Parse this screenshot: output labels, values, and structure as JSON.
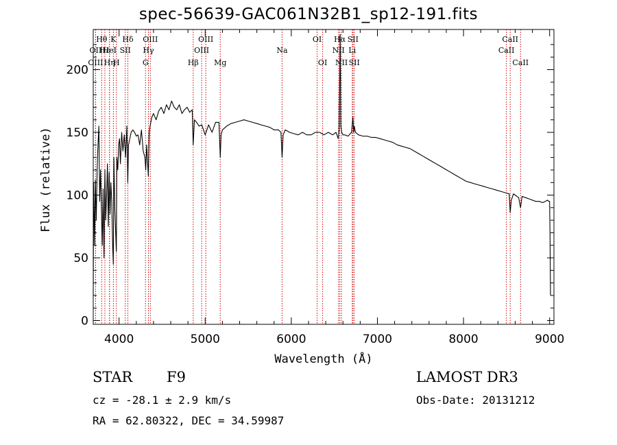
{
  "chart_data": {
    "type": "line",
    "title": "spec-56639-GAC061N32B1_sp12-191.fits",
    "xlabel": "Wavelength (Å)",
    "ylabel": "Flux (relative)",
    "xlim": [
      3700,
      9050
    ],
    "ylim": [
      -3,
      232
    ],
    "xticks": [
      4000,
      5000,
      6000,
      7000,
      8000,
      9000
    ],
    "yticks": [
      0,
      50,
      100,
      150,
      200
    ],
    "line_color": "#000000",
    "marker_color": "#cc0000",
    "series": [
      {
        "name": "spectrum",
        "x": [
          3700,
          3705,
          3715,
          3725,
          3735,
          3745,
          3755,
          3765,
          3775,
          3785,
          3795,
          3805,
          3815,
          3825,
          3835,
          3845,
          3855,
          3865,
          3875,
          3885,
          3895,
          3905,
          3915,
          3925,
          3933,
          3940,
          3950,
          3960,
          3968,
          3975,
          3985,
          3995,
          4005,
          4015,
          4030,
          4045,
          4060,
          4075,
          4090,
          4101,
          4110,
          4125,
          4140,
          4160,
          4180,
          4200,
          4220,
          4240,
          4260,
          4280,
          4300,
          4310,
          4320,
          4330,
          4340,
          4350,
          4360,
          4380,
          4400,
          4430,
          4460,
          4490,
          4520,
          4550,
          4580,
          4610,
          4640,
          4670,
          4700,
          4730,
          4760,
          4790,
          4820,
          4850,
          4861,
          4875,
          4900,
          4930,
          4960,
          5000,
          5040,
          5080,
          5120,
          5160,
          5175,
          5185,
          5200,
          5250,
          5300,
          5350,
          5400,
          5450,
          5500,
          5550,
          5600,
          5650,
          5700,
          5750,
          5800,
          5850,
          5880,
          5893,
          5905,
          5930,
          5980,
          6030,
          6080,
          6130,
          6180,
          6230,
          6280,
          6330,
          6380,
          6430,
          6480,
          6520,
          6545,
          6555,
          6563,
          6568,
          6575,
          6585,
          6600,
          6620,
          6660,
          6700,
          6716,
          6724,
          6731,
          6745,
          6780,
          6830,
          6880,
          6930,
          6980,
          7030,
          7080,
          7130,
          7180,
          7230,
          7280,
          7330,
          7380,
          7430,
          7480,
          7530,
          7580,
          7630,
          7680,
          7730,
          7780,
          7830,
          7880,
          7930,
          7980,
          8030,
          8080,
          8130,
          8180,
          8230,
          8280,
          8330,
          8380,
          8430,
          8480,
          8530,
          8542,
          8555,
          8580,
          8600,
          8620,
          8640,
          8662,
          8680,
          8720,
          8760,
          8800,
          8840,
          8880,
          8920,
          8950,
          8975,
          8990,
          9000,
          9005,
          9010
        ],
        "y": [
          20,
          110,
          60,
          112,
          80,
          120,
          140,
          155,
          95,
          120,
          90,
          60,
          105,
          50,
          120,
          80,
          100,
          125,
          75,
          118,
          85,
          110,
          95,
          60,
          45,
          130,
          90,
          70,
          55,
          130,
          120,
          140,
          145,
          125,
          150,
          135,
          148,
          130,
          155,
          110,
          140,
          145,
          150,
          152,
          150,
          147,
          148,
          140,
          152,
          135,
          130,
          120,
          140,
          128,
          115,
          150,
          155,
          162,
          165,
          160,
          167,
          170,
          165,
          172,
          168,
          175,
          170,
          168,
          172,
          165,
          168,
          170,
          166,
          168,
          140,
          160,
          158,
          155,
          156,
          148,
          156,
          150,
          158,
          158,
          130,
          148,
          152,
          155,
          157,
          158,
          159,
          160,
          159,
          158,
          157,
          156,
          155,
          154,
          152,
          152,
          150,
          130,
          148,
          152,
          150,
          149,
          148,
          150,
          148,
          148,
          150,
          150,
          148,
          150,
          148,
          150,
          145,
          152,
          195,
          228,
          155,
          150,
          148,
          148,
          147,
          150,
          162,
          150,
          155,
          150,
          148,
          147,
          147,
          146,
          146,
          145,
          144,
          143,
          142,
          140,
          139,
          138,
          137,
          135,
          133,
          131,
          129,
          127,
          125,
          123,
          121,
          119,
          117,
          115,
          113,
          111,
          110,
          109,
          108,
          107,
          106,
          105,
          104,
          103,
          102,
          101,
          86,
          96,
          101,
          100,
          99,
          98,
          90,
          99,
          98,
          97,
          96,
          95,
          95,
          94,
          95,
          96,
          95,
          95,
          68,
          20
        ]
      }
    ],
    "line_markers": [
      {
        "label": "Hθ",
        "x": 3798,
        "row": 1
      },
      {
        "label": "OII",
        "x": 3727,
        "row": 2
      },
      {
        "label": "OIII",
        "x": 3727,
        "row": 3
      },
      {
        "label": "Hε",
        "x": 3835,
        "row": 2
      },
      {
        "label": "Hη",
        "x": 3889,
        "row": 3
      },
      {
        "label": "K",
        "x": 3934,
        "row": 1
      },
      {
        "label": "HeI",
        "x": 3889,
        "row": 2
      },
      {
        "label": "H",
        "x": 3969,
        "row": 3
      },
      {
        "label": "Hδ",
        "x": 4102,
        "row": 1
      },
      {
        "label": "SII",
        "x": 4072,
        "row": 2
      },
      {
        "label": "OIII",
        "x": 4363,
        "row": 1
      },
      {
        "label": "Hγ",
        "x": 4341,
        "row": 2
      },
      {
        "label": "G",
        "x": 4307,
        "row": 3
      },
      {
        "label": "Hβ",
        "x": 4861,
        "row": 3
      },
      {
        "label": "OIII",
        "x": 5007,
        "row": 1
      },
      {
        "label": "OIII",
        "x": 4959,
        "row": 2
      },
      {
        "label": "Mg",
        "x": 5175,
        "row": 3
      },
      {
        "label": "Na",
        "x": 5893,
        "row": 2
      },
      {
        "label": "OI",
        "x": 6300,
        "row": 1
      },
      {
        "label": "OI",
        "x": 6364,
        "row": 3
      },
      {
        "label": "Hα",
        "x": 6563,
        "row": 1
      },
      {
        "label": "NII",
        "x": 6548,
        "row": 2
      },
      {
        "label": "NII",
        "x": 6583,
        "row": 3
      },
      {
        "label": "SII",
        "x": 6716,
        "row": 1
      },
      {
        "label": "Li",
        "x": 6708,
        "row": 2
      },
      {
        "label": "SII",
        "x": 6731,
        "row": 3
      },
      {
        "label": "CaII",
        "x": 8542,
        "row": 1
      },
      {
        "label": "CaII",
        "x": 8498,
        "row": 2
      },
      {
        "label": "CaII",
        "x": 8662,
        "row": 3
      }
    ]
  },
  "info": {
    "object_class": "STAR",
    "subclass": "F9",
    "survey": "LAMOST DR3",
    "redshift": "cz = -28.1 ± 2.9 km/s",
    "obs_date": "Obs-Date: 20131212",
    "coords": "RA =  62.80322, DEC =  34.59987"
  }
}
